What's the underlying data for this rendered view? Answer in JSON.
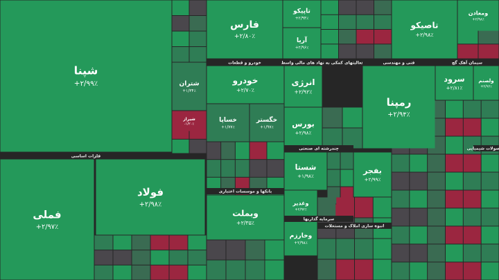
{
  "tiles": [
    {
      "name": "شپنا",
      "change": "+۲/۹۹٪"
    },
    {
      "name": "فملی",
      "change": "+۲/۹۷٪"
    },
    {
      "name": "فولاد",
      "change": "+۲/۹۸٪"
    },
    {
      "name": "فارس",
      "change": "+۲/۸۰٪"
    },
    {
      "name": "تاپیکو",
      "change": "+۲/۹۴٪"
    },
    {
      "name": "آریا",
      "change": "+۲/۹۶٪"
    },
    {
      "name": "تاصیکو",
      "change": "+۲/۹۸٪"
    },
    {
      "name": "رمپنا",
      "change": "+۲/۹۴٪"
    },
    {
      "name": "خودرو",
      "change": "+۲/۷۰٪"
    },
    {
      "name": "انرژی",
      "change": "+۲/۹۲٪"
    },
    {
      "name": "بورس",
      "change": "+۲/۹۸٪"
    },
    {
      "name": "سرود",
      "change": "+۲/۸۱٪"
    },
    {
      "name": "شستا",
      "change": "+۱/۹۸٪"
    },
    {
      "name": "بفجر",
      "change": "+۲/۹۹٪"
    },
    {
      "name": "وبملت",
      "change": "+۲/۳۵٪"
    },
    {
      "name": "شتران",
      "change": "+۱/۳۴٪"
    },
    {
      "name": "خساپا",
      "change": "+۱/۷۷٪"
    },
    {
      "name": "خگستر",
      "change": "+۱/۹۷٪"
    },
    {
      "name": "وخارزم",
      "change": "+۲/۹۸٪"
    },
    {
      "name": "وغدیر",
      "change": "+۲/۹۲٪"
    },
    {
      "name": "ومعادن",
      "change": "+۲/۹۸٪"
    },
    {
      "name": "ولصنم",
      "change": "+۲/۹۶٪"
    },
    {
      "name": "شیراز",
      "change": "-۱/۲۰٪"
    }
  ],
  "sectors": [
    "فلزات اساسی",
    "خودرو و قطعات",
    "فعالیتهای کمکی به نهاد های مالی واسط",
    "فنی و مهندسی",
    "سیمان آهک گچ",
    "چندرشته ای صنعتی",
    "بانکها و موسسات اعتباری",
    "سرمایه گذاریها",
    "انبوه سازی املاک و مستغلات",
    "محصولات شیمیایی"
  ]
}
